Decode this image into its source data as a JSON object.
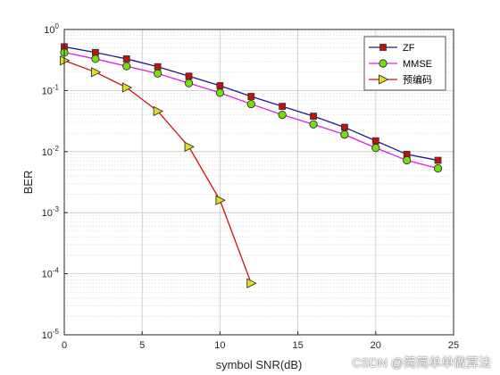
{
  "chart_data": {
    "type": "line",
    "xlabel": "symbol SNR(dB)",
    "ylabel": "BER",
    "xlim": [
      0,
      25
    ],
    "ylim": [
      1e-05,
      1
    ],
    "yscale": "log",
    "xticks": [
      "0",
      "5",
      "10",
      "15",
      "20",
      "25"
    ],
    "yticks": [
      {
        "base": "10",
        "exp": "0"
      },
      {
        "base": "10",
        "exp": "-1"
      },
      {
        "base": "10",
        "exp": "-2"
      },
      {
        "base": "10",
        "exp": "-3"
      },
      {
        "base": "10",
        "exp": "-4"
      },
      {
        "base": "10",
        "exp": "-5"
      }
    ],
    "grid": true,
    "legend_position": "top-right",
    "series": [
      {
        "name": "ZF",
        "color": "#1a1a8c",
        "marker": "square",
        "marker_color": "#c01010",
        "x": [
          0,
          2,
          4,
          6,
          8,
          10,
          12,
          14,
          16,
          18,
          20,
          22,
          24
        ],
        "y": [
          0.52,
          0.42,
          0.33,
          0.245,
          0.172,
          0.12,
          0.08,
          0.055,
          0.038,
          0.025,
          0.015,
          0.009,
          0.0072
        ]
      },
      {
        "name": "MMSE",
        "color": "#e020e0",
        "marker": "circle",
        "marker_color": "#77dd11",
        "x": [
          0,
          2,
          4,
          6,
          8,
          10,
          12,
          14,
          16,
          18,
          20,
          22,
          24
        ],
        "y": [
          0.42,
          0.33,
          0.25,
          0.19,
          0.132,
          0.092,
          0.06,
          0.04,
          0.028,
          0.019,
          0.0115,
          0.0072,
          0.0053
        ]
      },
      {
        "name": "预编码",
        "color": "#cc1111",
        "marker": "triangle-right",
        "marker_color": "#dddd22",
        "x": [
          0,
          2,
          4,
          6,
          8,
          10,
          12
        ],
        "y": [
          0.31,
          0.2,
          0.112,
          0.046,
          0.012,
          0.0016,
          7e-05
        ]
      }
    ]
  },
  "watermark": "CSDN @简简单单做算法"
}
